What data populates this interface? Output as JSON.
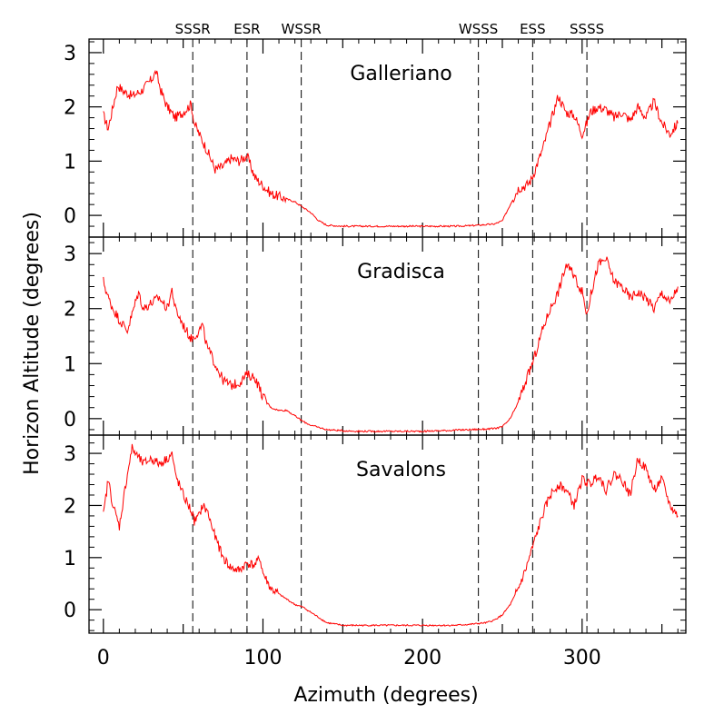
{
  "figure": {
    "xlabel": "Azimuth (degrees)",
    "ylabel": "Horizon Altitude (degrees)"
  },
  "chart_data": [
    {
      "type": "line",
      "title": "Galleriano",
      "xlim": [
        -9,
        365
      ],
      "ylim": [
        -0.4,
        3.25
      ],
      "yticks": [
        0,
        1,
        2,
        3
      ],
      "xticks": [
        0,
        100,
        200,
        300
      ],
      "series": [
        {
          "name": "Galleriano",
          "color": "#ff0000",
          "x": [
            0,
            3,
            6,
            9,
            12,
            18,
            24,
            30,
            33,
            36,
            40,
            45,
            50,
            55,
            57,
            60,
            65,
            70,
            75,
            80,
            85,
            90,
            95,
            100,
            105,
            110,
            115,
            120,
            125,
            130,
            135,
            140,
            150,
            160,
            170,
            180,
            190,
            200,
            210,
            220,
            230,
            240,
            245,
            250,
            255,
            260,
            265,
            268,
            270,
            275,
            280,
            285,
            290,
            295,
            300,
            303,
            305,
            310,
            315,
            320,
            325,
            330,
            335,
            340,
            345,
            350,
            355,
            360
          ],
          "y": [
            1.85,
            1.6,
            2.0,
            2.4,
            2.3,
            2.2,
            2.3,
            2.5,
            2.65,
            2.3,
            2.0,
            1.8,
            1.9,
            2.05,
            1.7,
            1.5,
            1.2,
            0.85,
            0.9,
            1.05,
            1.0,
            1.1,
            0.7,
            0.55,
            0.4,
            0.35,
            0.3,
            0.25,
            0.15,
            0.05,
            -0.1,
            -0.18,
            -0.2,
            -0.2,
            -0.2,
            -0.2,
            -0.2,
            -0.2,
            -0.2,
            -0.2,
            -0.19,
            -0.17,
            -0.16,
            -0.1,
            0.2,
            0.5,
            0.55,
            0.65,
            0.8,
            1.2,
            1.7,
            2.2,
            1.9,
            1.85,
            1.5,
            1.7,
            1.9,
            2.0,
            1.95,
            1.8,
            1.9,
            1.75,
            2.0,
            1.8,
            2.1,
            1.7,
            1.5,
            1.7
          ]
        }
      ],
      "annotations": [
        {
          "x": 56,
          "label": "SSSR"
        },
        {
          "x": 90,
          "label": "ESR"
        },
        {
          "x": 124,
          "label": "WSSR"
        },
        {
          "x": 235,
          "label": "WSSS"
        },
        {
          "x": 269,
          "label": "ESS"
        },
        {
          "x": 303,
          "label": "SSSS"
        }
      ]
    },
    {
      "type": "line",
      "title": "Gradisca",
      "xlim": [
        -9,
        365
      ],
      "ylim": [
        -0.3,
        3.3
      ],
      "yticks": [
        0,
        1,
        2,
        3
      ],
      "xticks": [
        0,
        100,
        200,
        300
      ],
      "series": [
        {
          "name": "Gradisca",
          "color": "#ff0000",
          "x": [
            0,
            3,
            6,
            10,
            15,
            18,
            22,
            25,
            30,
            35,
            40,
            43,
            45,
            50,
            55,
            57,
            60,
            62,
            65,
            70,
            75,
            80,
            85,
            90,
            95,
            100,
            105,
            110,
            115,
            120,
            125,
            130,
            140,
            150,
            160,
            170,
            180,
            190,
            200,
            210,
            220,
            230,
            240,
            245,
            250,
            255,
            260,
            265,
            270,
            275,
            280,
            285,
            290,
            295,
            300,
            303,
            305,
            310,
            315,
            320,
            325,
            330,
            335,
            340,
            345,
            350,
            355,
            360
          ],
          "y": [
            2.5,
            2.2,
            2.0,
            1.8,
            1.6,
            1.9,
            2.3,
            2.0,
            2.1,
            2.2,
            2.0,
            2.35,
            2.0,
            1.7,
            1.45,
            1.5,
            1.6,
            1.7,
            1.3,
            1.0,
            0.7,
            0.6,
            0.65,
            0.8,
            0.75,
            0.4,
            0.2,
            0.15,
            0.15,
            0.05,
            -0.05,
            -0.12,
            -0.2,
            -0.22,
            -0.23,
            -0.23,
            -0.23,
            -0.23,
            -0.23,
            -0.22,
            -0.21,
            -0.2,
            -0.19,
            -0.18,
            -0.15,
            0.0,
            0.3,
            0.7,
            1.1,
            1.6,
            2.0,
            2.3,
            2.8,
            2.6,
            2.3,
            1.9,
            2.2,
            2.8,
            2.9,
            2.5,
            2.4,
            2.2,
            2.3,
            2.2,
            2.0,
            2.3,
            2.1,
            2.4
          ]
        }
      ],
      "annotations": []
    },
    {
      "type": "line",
      "title": "Savalons",
      "xlim": [
        -9,
        365
      ],
      "ylim": [
        -0.45,
        3.35
      ],
      "yticks": [
        0,
        1,
        2,
        3
      ],
      "xticks": [
        0,
        100,
        200,
        300
      ],
      "series": [
        {
          "name": "Savalons",
          "color": "#ff0000",
          "x": [
            0,
            3,
            6,
            10,
            15,
            18,
            20,
            25,
            30,
            35,
            40,
            43,
            45,
            50,
            55,
            57,
            60,
            62,
            65,
            70,
            75,
            80,
            85,
            90,
            95,
            98,
            100,
            105,
            110,
            115,
            120,
            125,
            130,
            140,
            150,
            160,
            170,
            180,
            190,
            200,
            210,
            220,
            230,
            240,
            245,
            250,
            255,
            260,
            265,
            270,
            275,
            280,
            285,
            290,
            295,
            300,
            305,
            310,
            315,
            320,
            325,
            330,
            335,
            340,
            345,
            350,
            355,
            360
          ],
          "y": [
            1.8,
            2.5,
            2.0,
            1.6,
            2.6,
            3.1,
            3.0,
            2.8,
            2.9,
            2.8,
            2.9,
            3.0,
            2.6,
            2.2,
            1.9,
            1.7,
            1.8,
            2.0,
            1.9,
            1.4,
            1.0,
            0.8,
            0.75,
            0.9,
            0.85,
            1.0,
            0.7,
            0.4,
            0.3,
            0.2,
            0.1,
            0.05,
            -0.05,
            -0.25,
            -0.3,
            -0.3,
            -0.3,
            -0.3,
            -0.3,
            -0.3,
            -0.3,
            -0.3,
            -0.28,
            -0.25,
            -0.2,
            -0.1,
            0.1,
            0.4,
            0.8,
            1.3,
            1.8,
            2.2,
            2.4,
            2.3,
            2.0,
            2.5,
            2.4,
            2.6,
            2.3,
            2.6,
            2.5,
            2.2,
            2.9,
            2.7,
            2.3,
            2.5,
            2.0,
            1.8
          ]
        }
      ],
      "annotations": []
    }
  ]
}
